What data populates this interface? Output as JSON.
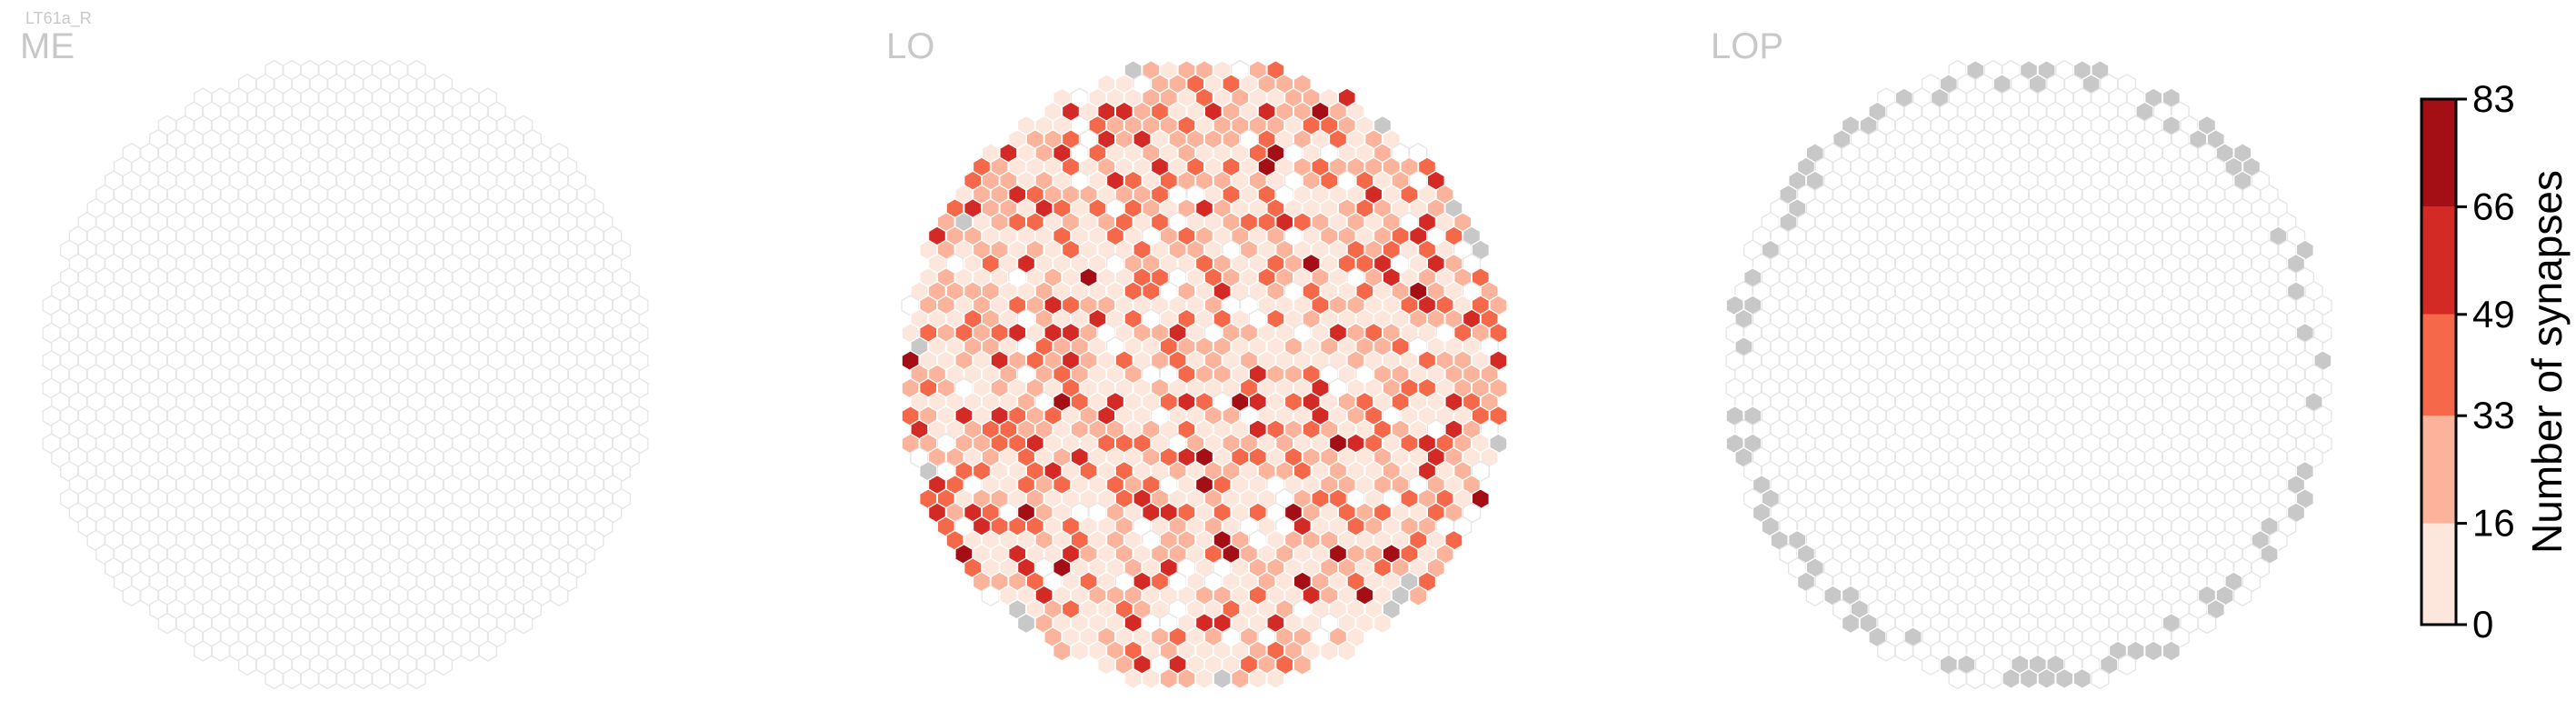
{
  "cell_type": "LT61a_R",
  "colors": {
    "empty_fill": "#ffffff",
    "empty_stroke": "#e6e6e6",
    "gray_fill": "#c8c8c8",
    "label_gray": "#c8c8c8",
    "bins": [
      "#fde7dd",
      "#fbb49b",
      "#f6684a",
      "#d42a25",
      "#a30f15"
    ]
  },
  "chart_data": {
    "type": "heatmap",
    "subtype": "hexagonal column map",
    "panels": [
      {
        "name": "ME",
        "pattern": "empty",
        "dense_fraction": 0.0
      },
      {
        "name": "LO",
        "pattern": "dense",
        "dense_fraction": 0.9
      },
      {
        "name": "LOP",
        "pattern": "rim",
        "dense_fraction": 0.0
      }
    ],
    "colorbar": {
      "label": "Number of synapses",
      "ticks": [
        0,
        16,
        33,
        49,
        66,
        83
      ],
      "vmin": 0,
      "vmax": 83
    },
    "synapse_level_distribution": {
      "0-16": 0.42,
      "16-33": 0.33,
      "33-49": 0.17,
      "49-66": 0.06,
      "66-83": 0.02
    }
  }
}
